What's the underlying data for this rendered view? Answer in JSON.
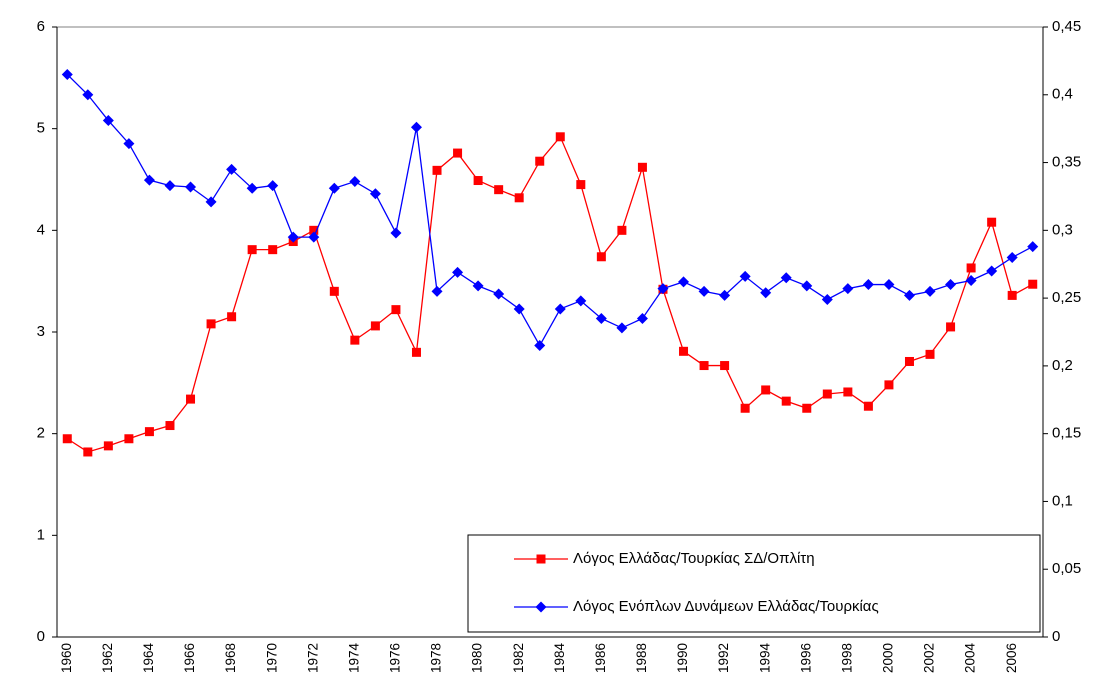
{
  "chart_data": {
    "type": "line",
    "categories": [
      1960,
      null,
      1962,
      null,
      1964,
      null,
      1966,
      null,
      1968,
      null,
      1970,
      null,
      1972,
      null,
      1974,
      null,
      1976,
      null,
      1978,
      null,
      1980,
      null,
      1982,
      null,
      1984,
      null,
      1986,
      null,
      1988,
      null,
      1990,
      null,
      1992,
      null,
      1994,
      null,
      1996,
      null,
      1998,
      null,
      2000,
      null,
      2002,
      null,
      2004,
      null,
      2006,
      null
    ],
    "series": [
      {
        "name": "Λόγος Ελλάδας/Τουρκίας ΣΔ/Οπλίτη",
        "color": "#ff0000",
        "marker": "square",
        "values": [
          1.95,
          1.82,
          1.88,
          1.95,
          2.02,
          2.08,
          2.34,
          3.08,
          3.15,
          3.81,
          3.81,
          3.89,
          4.0,
          3.4,
          2.92,
          3.06,
          3.22,
          2.8,
          4.59,
          4.76,
          4.49,
          4.4,
          4.32,
          4.68,
          4.92,
          4.45,
          3.74,
          4.0,
          4.62,
          3.42,
          2.81,
          2.67,
          2.67,
          2.25,
          2.43,
          2.32,
          2.25,
          2.39,
          2.41,
          2.27,
          2.48,
          2.71,
          2.78,
          3.05,
          3.63,
          4.08,
          3.36,
          3.47
        ]
      },
      {
        "name": "Λόγος Ενόπλων Δυνάμεων Ελλάδας/Τουρκίας",
        "color": "#0000ff",
        "marker": "diamond",
        "axis": "y2",
        "values": [
          0.415,
          0.4,
          0.381,
          0.364,
          0.337,
          0.333,
          0.332,
          0.321,
          0.345,
          0.331,
          0.333,
          0.295,
          0.295,
          0.331,
          0.336,
          0.327,
          0.298,
          0.376,
          0.255,
          0.269,
          0.259,
          0.253,
          0.242,
          0.215,
          0.242,
          0.248,
          0.235,
          0.228,
          0.235,
          0.257,
          0.262,
          0.255,
          0.252,
          0.266,
          0.254,
          0.265,
          0.259,
          0.249,
          0.257,
          0.26,
          0.26,
          0.252,
          0.255,
          0.26,
          0.263,
          0.27,
          0.28,
          0.288
        ]
      }
    ],
    "ylim": [
      0,
      6
    ],
    "yticks": [
      0,
      1,
      2,
      3,
      4,
      5,
      6
    ],
    "y2lim": [
      0,
      0.45
    ],
    "y2ticks": [
      0,
      {
        "value": 0.05,
        "label": "0,05"
      },
      {
        "value": 0.1,
        "label": "0,1"
      },
      {
        "value": 0.15,
        "label": "0,15"
      },
      {
        "value": 0.2,
        "label": "0,2"
      },
      {
        "value": 0.25,
        "label": "0,25"
      },
      {
        "value": 0.3,
        "label": "0,3"
      },
      {
        "value": 0.35,
        "label": "0,35"
      },
      {
        "value": 0.4,
        "label": "0,4"
      },
      {
        "value": 0.45,
        "label": "0,45"
      }
    ],
    "legend": "lower right",
    "grid": false
  }
}
